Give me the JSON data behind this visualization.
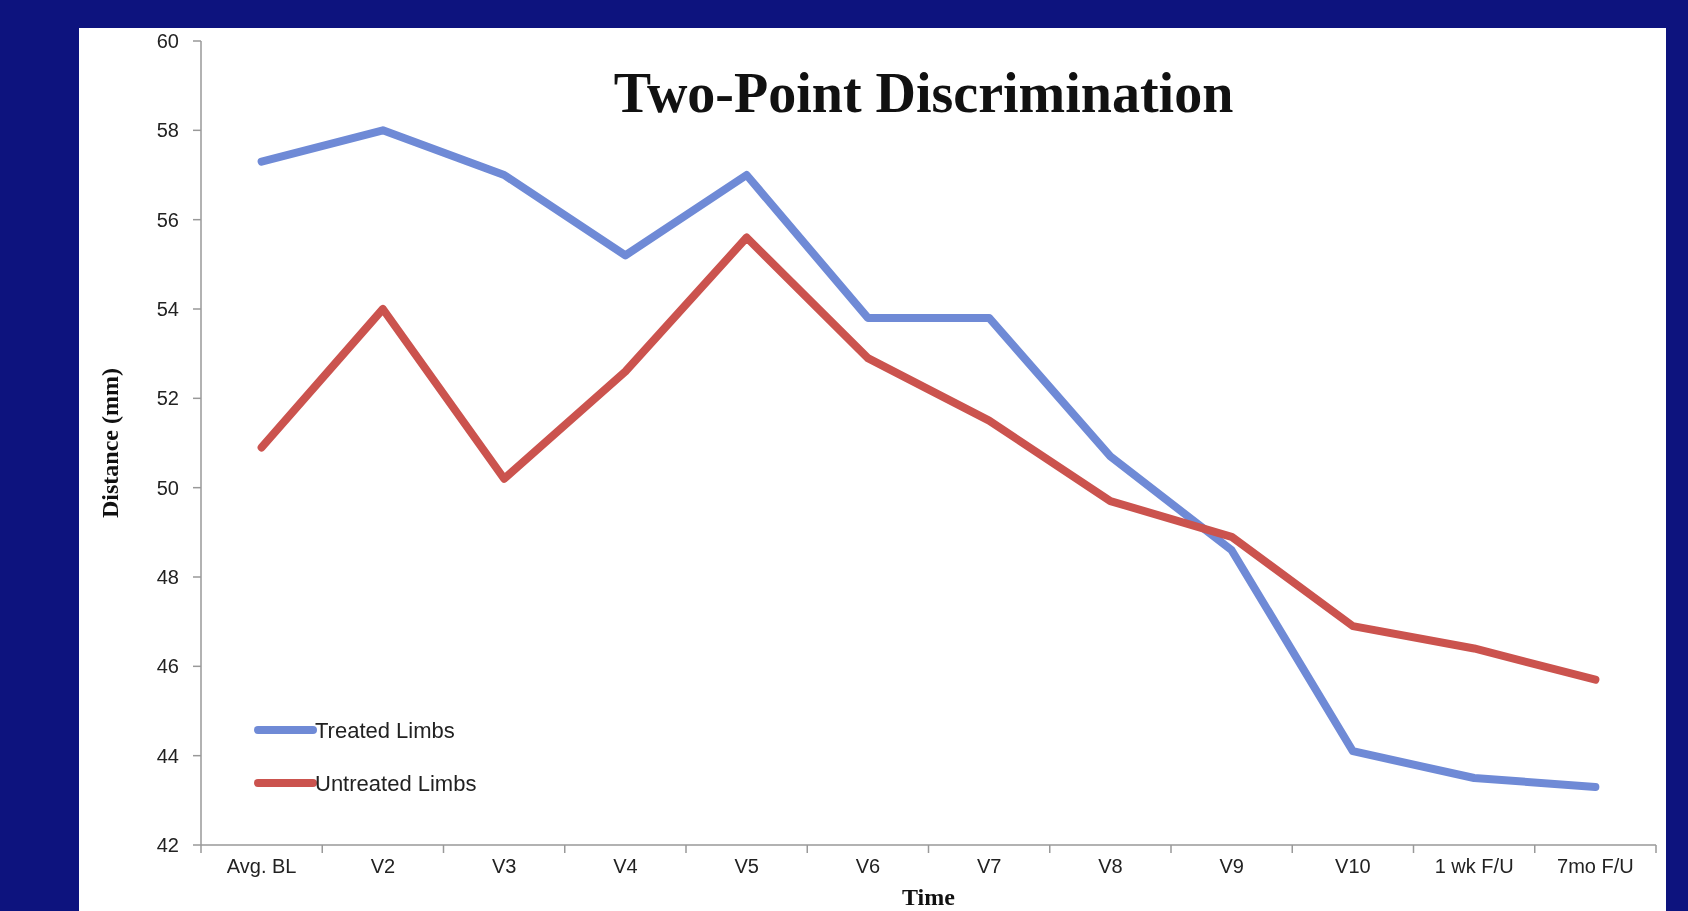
{
  "chart_data": {
    "type": "line",
    "title": "Two-Point Discrimination",
    "xlabel": "Time",
    "ylabel": "Distance (mm)",
    "categories": [
      "Avg. BL",
      "V2",
      "V3",
      "V4",
      "V5",
      "V6",
      "V7",
      "V8",
      "V9",
      "V10",
      "1 wk F/U",
      "7mo F/U"
    ],
    "series": [
      {
        "name": "Treated Limbs",
        "color": "#6f8ad6",
        "values": [
          57.3,
          58.0,
          57.0,
          55.2,
          57.0,
          53.8,
          53.8,
          50.7,
          48.6,
          44.1,
          43.5,
          43.3
        ]
      },
      {
        "name": "Untreated Limbs",
        "color": "#cb534e",
        "values": [
          50.9,
          54.0,
          50.2,
          52.6,
          55.6,
          52.9,
          51.5,
          49.7,
          48.9,
          46.9,
          46.4,
          45.7
        ]
      }
    ],
    "ylim": [
      42,
      60
    ],
    "yticks": [
      42,
      44,
      46,
      48,
      50,
      52,
      54,
      56,
      58,
      60
    ],
    "grid": false,
    "legend": "bottom left",
    "marker": "none",
    "line_style": "solid"
  }
}
